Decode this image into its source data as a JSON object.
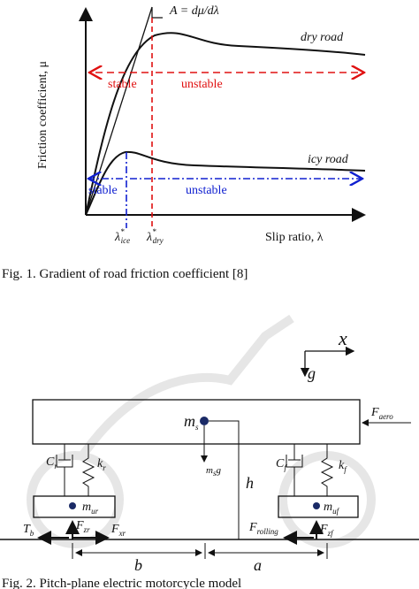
{
  "figure1": {
    "tangent_label": "A = dμ/dλ",
    "dry_road": "dry road",
    "dry_stable": "stable",
    "dry_unstable": "unstable",
    "icy_road": "icy road",
    "icy_stable": "stable",
    "icy_unstable": "unstable",
    "y_axis_label": "Friction coefficient, μ",
    "lambda_ice": {
      "main": "λ",
      "sup": "*",
      "sub": "ice"
    },
    "lambda_dry": {
      "main": "λ",
      "sup": "*",
      "sub": "dry"
    },
    "x_axis_label": "Slip ratio, λ",
    "caption": "Fig. 1.   Gradient of road friction coefficient [8]"
  },
  "figure2": {
    "x": "x",
    "g": "g",
    "f_aero": {
      "main": "F",
      "sub": "aero"
    },
    "m_s": {
      "main": "m",
      "sub": "s"
    },
    "m_s_g": {
      "main": "m",
      "sub": "s",
      "after": "g"
    },
    "c_r": {
      "main": "C",
      "sub": "r"
    },
    "k_r": {
      "main": "k",
      "sub": "r"
    },
    "c_f": {
      "main": "C",
      "sub": "f"
    },
    "k_f": {
      "main": "k",
      "sub": "f"
    },
    "h": "h",
    "m_ur": {
      "main": "m",
      "sub": "ur"
    },
    "m_uf": {
      "main": "m",
      "sub": "uf"
    },
    "t_b": {
      "main": "T",
      "sub": "b"
    },
    "f_zr": {
      "main": "F",
      "sub": "zr"
    },
    "f_xr": {
      "main": "F",
      "sub": "xr"
    },
    "f_rolling": {
      "main": "F",
      "sub": "rolling"
    },
    "f_zf": {
      "main": "F",
      "sub": "zf"
    },
    "b": "b",
    "a": "a",
    "caption": "Fig. 2.   Pitch-plane electric motorcycle model"
  }
}
